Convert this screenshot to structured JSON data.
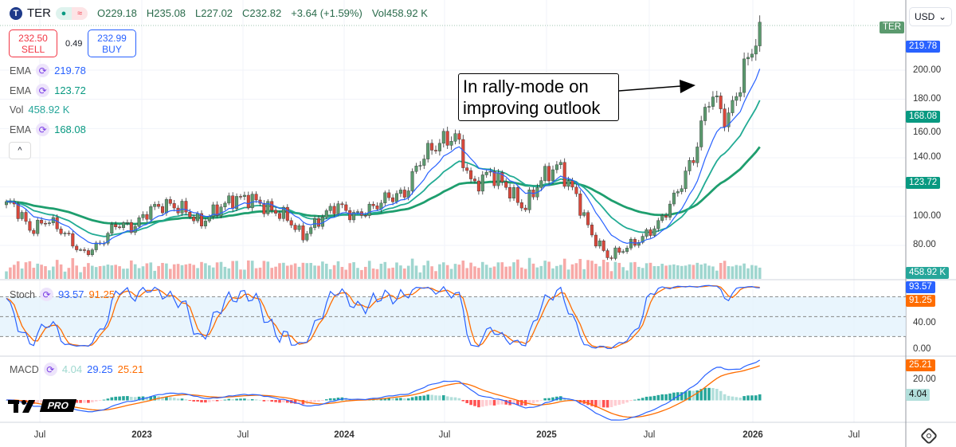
{
  "header": {
    "symbol": "TER",
    "logo_letter": "T",
    "market_dot": "●",
    "delayed_icon": "≈",
    "open": "O229.18",
    "high": "H235.08",
    "low": "L227.02",
    "close": "C232.82",
    "change": "+3.64 (+1.59%)",
    "volume": "Vol458.92 K"
  },
  "trade": {
    "sell_price": "232.50",
    "sell_label": "SELL",
    "spread": "0.49",
    "buy_price": "232.99",
    "buy_label": "BUY"
  },
  "indicators": [
    {
      "name": "EMA",
      "value": "219.78",
      "color": "#2962ff"
    },
    {
      "name": "EMA",
      "value": "123.72",
      "color": "#089981"
    },
    {
      "name": "Vol",
      "value": "458.92 K",
      "color": "#26a69a"
    },
    {
      "name": "EMA",
      "value": "168.08",
      "color": "#089981"
    }
  ],
  "collapse_icon": "^",
  "currency": "USD",
  "annotation": "In rally-mode on improving outlook",
  "price_axis": {
    "ticks": [
      "200.00",
      "180.00",
      "160.00",
      "140.00",
      "100.00",
      "80.00"
    ],
    "badges": {
      "symbol": "TER",
      "ema_fast": "219.78",
      "ema_mid": "168.08",
      "ema_slow": "123.72",
      "volume": "458.92 K"
    }
  },
  "stoch": {
    "label": "Stoch",
    "k": "93.57",
    "d": "91.25",
    "ticks": [
      "40.00",
      "0.00"
    ],
    "bands": [
      80,
      50,
      20
    ]
  },
  "macd": {
    "label": "MACD",
    "hist": "4.04",
    "macd": "29.25",
    "signal": "25.21",
    "ticks": [
      "20.00"
    ]
  },
  "time_axis": [
    "Jul",
    "2023",
    "Jul",
    "2024",
    "Jul",
    "2025",
    "Jul",
    "2026",
    "Jul"
  ],
  "watermark": "PRO",
  "colors": {
    "up": "#26a69a",
    "down": "#ef5350",
    "candle_up": "#5b9a6e",
    "candle_down": "#d9473a",
    "ema_fast": "#2962ff",
    "ema_mid": "#22ab94",
    "ema_slow": "#1e9e6e",
    "stoch_k": "#2962ff",
    "stoch_d": "#ff6d00",
    "macd": "#2962ff",
    "signal": "#ff6d00"
  },
  "chart_data": {
    "type": "candlestick",
    "interval": "weekly",
    "ylim": [
      60,
      240
    ],
    "grid": true,
    "monthly_close": [
      [
        "2022-05",
        108
      ],
      [
        "2022-06",
        90
      ],
      [
        "2022-07",
        98
      ],
      [
        "2022-08",
        88
      ],
      [
        "2022-09",
        74
      ],
      [
        "2022-10",
        80
      ],
      [
        "2022-11",
        95
      ],
      [
        "2022-12",
        92
      ],
      [
        "2023-01",
        105
      ],
      [
        "2023-02",
        108
      ],
      [
        "2023-03",
        105
      ],
      [
        "2023-04",
        95
      ],
      [
        "2023-05",
        105
      ],
      [
        "2023-06",
        112
      ],
      [
        "2023-07",
        112
      ],
      [
        "2023-08",
        105
      ],
      [
        "2023-09",
        100
      ],
      [
        "2023-10",
        86
      ],
      [
        "2023-11",
        98
      ],
      [
        "2023-12",
        108
      ],
      [
        "2024-01",
        100
      ],
      [
        "2024-02",
        105
      ],
      [
        "2024-03",
        113
      ],
      [
        "2024-04",
        115
      ],
      [
        "2024-05",
        140
      ],
      [
        "2024-06",
        150
      ],
      [
        "2024-07",
        155
      ],
      [
        "2024-08",
        120
      ],
      [
        "2024-09",
        130
      ],
      [
        "2024-10",
        120
      ],
      [
        "2024-11",
        105
      ],
      [
        "2024-12",
        125
      ],
      [
        "2025-01",
        135
      ],
      [
        "2025-02",
        115
      ],
      [
        "2025-03",
        88
      ],
      [
        "2025-04",
        72
      ],
      [
        "2025-05",
        78
      ],
      [
        "2025-06",
        85
      ],
      [
        "2025-07",
        95
      ],
      [
        "2025-08",
        115
      ],
      [
        "2025-09",
        140
      ],
      [
        "2025-10",
        185
      ],
      [
        "2025-11",
        165
      ],
      [
        "2025-12",
        200
      ],
      [
        "2026-01",
        232.82
      ]
    ]
  }
}
